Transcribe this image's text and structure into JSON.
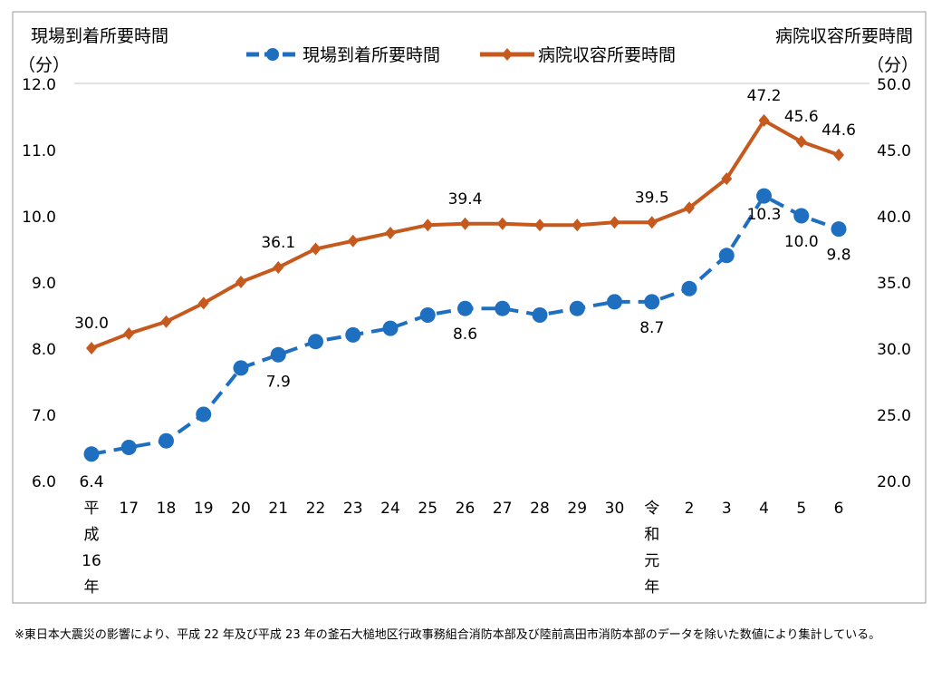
{
  "chart_data": {
    "type": "line",
    "categories": [
      "平成16年",
      "17",
      "18",
      "19",
      "20",
      "21",
      "22",
      "23",
      "24",
      "25",
      "26",
      "27",
      "28",
      "29",
      "30",
      "令和元年",
      "2",
      "3",
      "4",
      "5",
      "6"
    ],
    "series": [
      {
        "name": "現場到着所要時間",
        "axis": "left",
        "color": "#1F6FC0",
        "style": "dashed with circle markers",
        "values": [
          6.4,
          6.5,
          6.6,
          7.0,
          7.7,
          7.9,
          8.1,
          8.2,
          8.3,
          8.5,
          8.6,
          8.6,
          8.5,
          8.6,
          8.7,
          8.7,
          8.9,
          9.4,
          10.3,
          10.0,
          9.8
        ],
        "labeled_indices": [
          0,
          5,
          10,
          15,
          18,
          19,
          20
        ]
      },
      {
        "name": "病院収容所要時間",
        "axis": "right",
        "color": "#C65A1E",
        "style": "solid with diamond markers",
        "values": [
          30.0,
          31.1,
          32.0,
          33.4,
          35.0,
          36.1,
          37.5,
          38.1,
          38.7,
          39.3,
          39.4,
          39.4,
          39.3,
          39.3,
          39.5,
          39.5,
          40.6,
          42.8,
          47.2,
          45.6,
          44.6
        ],
        "labeled_indices": [
          0,
          5,
          10,
          15,
          18,
          19,
          20
        ]
      }
    ],
    "left_axis": {
      "title": "現場到着所要時間",
      "unit": "（分）",
      "ylim": [
        6.0,
        12.0
      ],
      "ticks": [
        "6.0",
        "7.0",
        "8.0",
        "9.0",
        "10.0",
        "11.0",
        "12.0"
      ]
    },
    "right_axis": {
      "title": "病院収容所要時間",
      "unit": "（分）",
      "ylim": [
        20.0,
        50.0
      ],
      "ticks": [
        "20.0",
        "25.0",
        "30.0",
        "35.0",
        "40.0",
        "45.0",
        "50.0"
      ]
    },
    "grid": "top line only",
    "legend": "top-center"
  },
  "footnote": "※東日本大震災の影響により、平成 22 年及び平成 23 年の釜石大槌地区行政事務組合消防本部及び陸前高田市消防本部のデータを除いた数値により集計している。"
}
